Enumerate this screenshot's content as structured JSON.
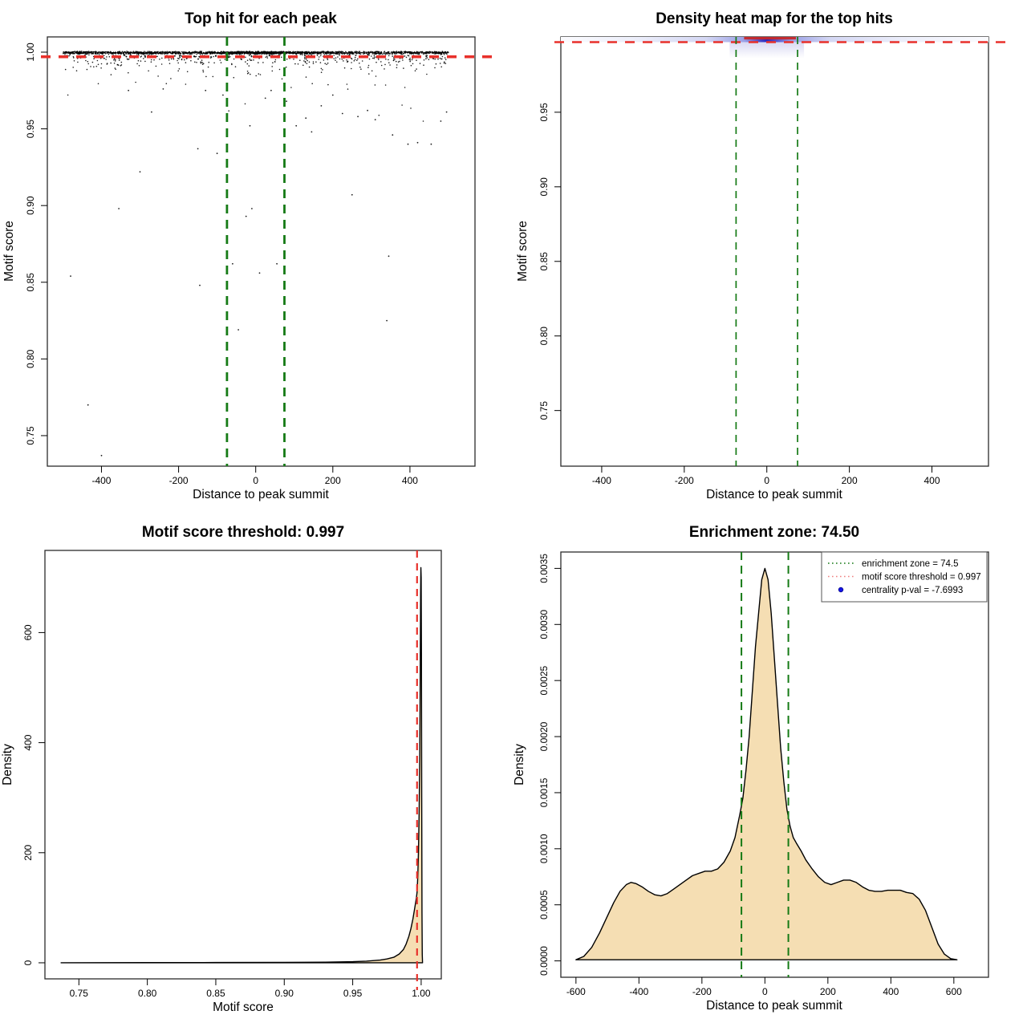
{
  "figure": {
    "background": "#ffffff",
    "stats": {
      "enrichment_zone": 74.5,
      "motif_score_threshold": 0.997,
      "centrality_pval": -7.6993
    },
    "colors": {
      "threshold_red": "#e8312b",
      "legend_salmon": "#f08080",
      "enrichment_green": "#157a15",
      "density_fill": "#f5deb3",
      "curve_stroke": "#000000",
      "heat_low": "#fbfbfe",
      "heat_mid": "#9aa0e6",
      "heat_high": "#2626bd",
      "heat_max": "#c62828",
      "pval_blue": "#1414e8"
    }
  },
  "chart_data": [
    {
      "id": "top-hit-scatter",
      "type": "scatter",
      "title": "Top hit for each peak",
      "xlabel": "Distance to peak summit",
      "ylabel": "Motif score",
      "xlim": [
        -540.4,
        568.7
      ],
      "ylim": [
        0.7301,
        1.00994
      ],
      "xticks": [
        -400,
        -200,
        0,
        200,
        400
      ],
      "xtick_labels": [
        "-400",
        "-200",
        "0",
        "200",
        "400"
      ],
      "yticks": [
        0.75,
        0.8,
        0.85,
        0.9,
        0.95,
        1.0
      ],
      "ytick_labels": [
        "0.75",
        "0.80",
        "0.85",
        "0.90",
        "0.95",
        "1.00"
      ],
      "hline": {
        "value": 0.997,
        "color": "#e8312b",
        "style": "dashed",
        "meaning": "motif score threshold"
      },
      "vlines": {
        "values": [
          -74.5,
          74.5
        ],
        "color": "#157a15",
        "style": "dashed",
        "meaning": "enrichment zone"
      },
      "point_color": "#000000",
      "points_summary": {
        "seed": 42,
        "dense_band": {
          "y_center": 1.0,
          "y_spread": 0.0012,
          "x_range": [
            -500,
            500
          ],
          "n": 1750
        },
        "center_blob": {
          "x_center": 0,
          "x_sd": 55,
          "n": 250
        },
        "upper_tail": {
          "y_start": 0.998,
          "decay": 0.003,
          "n": 430
        },
        "deep_tail": {
          "y_start": 0.995,
          "decay": 0.012,
          "n": 45
        }
      },
      "visible_outliers": [
        [
          -480,
          0.854
        ],
        [
          -435,
          0.77
        ],
        [
          -400,
          0.737
        ],
        [
          -355,
          0.898
        ],
        [
          -300,
          0.922
        ],
        [
          -330,
          0.975
        ],
        [
          -270,
          0.961
        ],
        [
          -240,
          0.976
        ],
        [
          -150,
          0.937
        ],
        [
          -145,
          0.848
        ],
        [
          -130,
          0.975
        ],
        [
          -100,
          0.934
        ],
        [
          -85,
          0.972
        ],
        [
          -60,
          0.862
        ],
        [
          -45,
          0.819
        ],
        [
          -25,
          0.893
        ],
        [
          -15,
          0.952
        ],
        [
          -10,
          0.898
        ],
        [
          10,
          0.856
        ],
        [
          25,
          0.97
        ],
        [
          40,
          0.975
        ],
        [
          55,
          0.862
        ],
        [
          80,
          0.968
        ],
        [
          105,
          0.952
        ],
        [
          130,
          0.957
        ],
        [
          145,
          0.948
        ],
        [
          170,
          0.965
        ],
        [
          200,
          0.972
        ],
        [
          225,
          0.96
        ],
        [
          250,
          0.907
        ],
        [
          265,
          0.958
        ],
        [
          290,
          0.962
        ],
        [
          310,
          0.956
        ],
        [
          345,
          0.867
        ],
        [
          340,
          0.825
        ],
        [
          355,
          0.946
        ],
        [
          395,
          0.94
        ],
        [
          420,
          0.941
        ],
        [
          455,
          0.94
        ],
        [
          480,
          0.955
        ],
        [
          495,
          0.961
        ]
      ]
    },
    {
      "id": "density-heatmap",
      "type": "heatmap",
      "title": "Density heat map for the top hits",
      "xlabel": "Distance to peak summit",
      "ylabel": "Motif score",
      "xlim": [
        -499,
        537
      ],
      "ylim": [
        0.7127,
        1.0005
      ],
      "xticks": [
        -400,
        -200,
        0,
        200,
        400
      ],
      "xtick_labels": [
        "-400",
        "-200",
        "0",
        "200",
        "400"
      ],
      "yticks": [
        0.75,
        0.8,
        0.85,
        0.9,
        0.95
      ],
      "ytick_labels": [
        "0.75",
        "0.80",
        "0.85",
        "0.90",
        "0.95"
      ],
      "hline": {
        "value": 0.997,
        "color": "#e8312b",
        "style": "dashed",
        "meaning": "motif score threshold"
      },
      "vlines": {
        "values": [
          -74.5,
          74.5
        ],
        "color": "#157a15",
        "style": "dashed",
        "meaning": "enrichment zone"
      },
      "density_band": {
        "y_location": 1.0,
        "hot_region_x": [
          -74.5,
          74.5
        ],
        "description": "all top-hit density concentrated at motif score ~1.0; hottest (red) between the enrichment-zone lines",
        "colors": {
          "low": "#fbfbfe",
          "mid": "#9aa0e6",
          "high": "#2626bd",
          "max": "#c62828"
        }
      }
    },
    {
      "id": "motif-score-density",
      "type": "area",
      "title": "Motif score threshold: 0.997",
      "xlabel": "Motif score",
      "ylabel": "Density",
      "xlim": [
        0.7252,
        1.0147
      ],
      "ylim": [
        0,
        749
      ],
      "xticks": [
        0.75,
        0.8,
        0.85,
        0.9,
        0.95,
        1.0
      ],
      "xtick_labels": [
        "0.75",
        "0.80",
        "0.85",
        "0.90",
        "0.95",
        "1.00"
      ],
      "yticks": [
        0,
        200,
        400,
        600
      ],
      "ytick_labels": [
        "0",
        "200",
        "400",
        "600"
      ],
      "vline": {
        "value": 0.997,
        "color": "#e8312b",
        "style": "dashed",
        "meaning": "motif score threshold"
      },
      "fill": "#f5deb3",
      "points": [
        [
          0.737,
          0
        ],
        [
          0.8,
          0.3
        ],
        [
          0.85,
          0.5
        ],
        [
          0.9,
          0.8
        ],
        [
          0.93,
          1.2
        ],
        [
          0.95,
          2
        ],
        [
          0.96,
          3
        ],
        [
          0.97,
          5
        ],
        [
          0.975,
          7
        ],
        [
          0.98,
          10
        ],
        [
          0.984,
          16
        ],
        [
          0.987,
          24
        ],
        [
          0.989,
          34
        ],
        [
          0.991,
          48
        ],
        [
          0.9925,
          62
        ],
        [
          0.994,
          80
        ],
        [
          0.995,
          95
        ],
        [
          0.996,
          110
        ],
        [
          0.9965,
          118
        ],
        [
          0.997,
          128
        ],
        [
          0.9975,
          155
        ],
        [
          0.998,
          200
        ],
        [
          0.9985,
          270
        ],
        [
          0.999,
          380
        ],
        [
          0.9993,
          520
        ],
        [
          0.9996,
          670
        ],
        [
          0.9998,
          718
        ],
        [
          1.0,
          700
        ],
        [
          1.0002,
          560
        ],
        [
          1.0004,
          300
        ],
        [
          1.0006,
          90
        ],
        [
          1.0008,
          15
        ],
        [
          1.001,
          0
        ]
      ]
    },
    {
      "id": "summit-distance-density",
      "type": "area",
      "title": "Enrichment zone: 74.50",
      "xlabel": "Distance to peak summit",
      "ylabel": "Density",
      "xlim": [
        -648,
        710
      ],
      "ylim": [
        0,
        0.00365
      ],
      "xticks": [
        -600,
        -400,
        -200,
        0,
        200,
        400,
        600
      ],
      "xtick_labels": [
        "-600",
        "-400",
        "-200",
        "0",
        "200",
        "400",
        "600"
      ],
      "yticks": [
        0.0,
        0.0005,
        0.001,
        0.0015,
        0.002,
        0.0025,
        0.003,
        0.0035
      ],
      "ytick_labels": [
        "0.0000",
        "0.0005",
        "0.0010",
        "0.0015",
        "0.0020",
        "0.0025",
        "0.0030",
        "0.0035"
      ],
      "vlines": {
        "values": [
          -74.5,
          74.5
        ],
        "color": "#157a15",
        "style": "dashed",
        "meaning": "enrichment zone"
      },
      "fill": "#f5deb3",
      "points": [
        [
          -600,
          1e-05
        ],
        [
          -575,
          4e-05
        ],
        [
          -550,
          0.00012
        ],
        [
          -525,
          0.00025
        ],
        [
          -500,
          0.0004
        ],
        [
          -480,
          0.00052
        ],
        [
          -460,
          0.00062
        ],
        [
          -440,
          0.00068
        ],
        [
          -425,
          0.0007
        ],
        [
          -410,
          0.00069
        ],
        [
          -390,
          0.00066
        ],
        [
          -370,
          0.00062
        ],
        [
          -350,
          0.00059
        ],
        [
          -330,
          0.00058
        ],
        [
          -310,
          0.0006
        ],
        [
          -290,
          0.00064
        ],
        [
          -270,
          0.00068
        ],
        [
          -250,
          0.00072
        ],
        [
          -230,
          0.00076
        ],
        [
          -210,
          0.00078
        ],
        [
          -190,
          0.0008
        ],
        [
          -170,
          0.0008
        ],
        [
          -150,
          0.00082
        ],
        [
          -130,
          0.00088
        ],
        [
          -110,
          0.00098
        ],
        [
          -95,
          0.0011
        ],
        [
          -80,
          0.0013
        ],
        [
          -70,
          0.00145
        ],
        [
          -60,
          0.0017
        ],
        [
          -50,
          0.002
        ],
        [
          -40,
          0.0024
        ],
        [
          -30,
          0.0028
        ],
        [
          -20,
          0.0031
        ],
        [
          -10,
          0.0034
        ],
        [
          0,
          0.0035
        ],
        [
          10,
          0.0034
        ],
        [
          20,
          0.0031
        ],
        [
          30,
          0.0027
        ],
        [
          40,
          0.0023
        ],
        [
          50,
          0.0019
        ],
        [
          60,
          0.0016
        ],
        [
          70,
          0.00135
        ],
        [
          80,
          0.0012
        ],
        [
          90,
          0.0011
        ],
        [
          100,
          0.00105
        ],
        [
          115,
          0.00098
        ],
        [
          130,
          0.0009
        ],
        [
          150,
          0.00082
        ],
        [
          170,
          0.00075
        ],
        [
          190,
          0.0007
        ],
        [
          210,
          0.00068
        ],
        [
          230,
          0.0007
        ],
        [
          250,
          0.00072
        ],
        [
          270,
          0.00072
        ],
        [
          290,
          0.0007
        ],
        [
          310,
          0.00066
        ],
        [
          330,
          0.00063
        ],
        [
          350,
          0.00062
        ],
        [
          370,
          0.00062
        ],
        [
          390,
          0.00063
        ],
        [
          410,
          0.00063
        ],
        [
          430,
          0.00063
        ],
        [
          450,
          0.00061
        ],
        [
          470,
          0.0006
        ],
        [
          490,
          0.00055
        ],
        [
          510,
          0.00045
        ],
        [
          530,
          0.0003
        ],
        [
          550,
          0.00015
        ],
        [
          570,
          6e-05
        ],
        [
          590,
          2e-05
        ],
        [
          610,
          1e-05
        ]
      ],
      "legend": {
        "position": "topright",
        "entries": [
          {
            "label": "enrichment zone = 74.5",
            "marker": "dotted-line",
            "color": "#157a15"
          },
          {
            "label": "motif score threshold = 0.997",
            "marker": "dotted-line",
            "color": "#f08080"
          },
          {
            "label": "centrality p-val = -7.6993",
            "marker": "point",
            "color": "#1414e8"
          }
        ]
      }
    }
  ]
}
